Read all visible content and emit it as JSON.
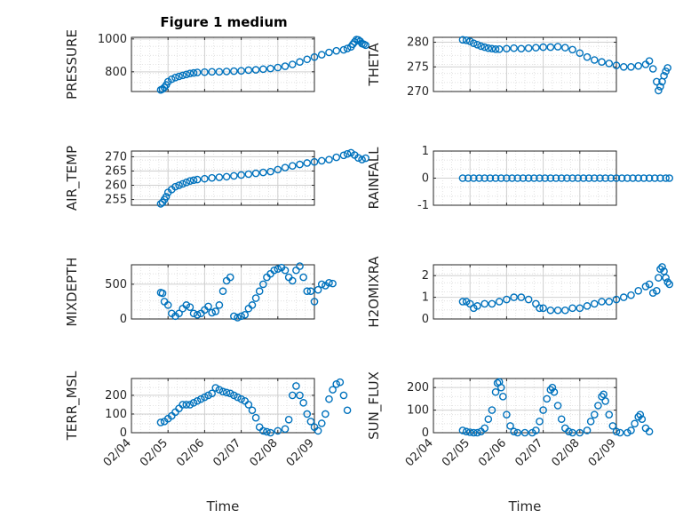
{
  "title": "Figure 1 medium",
  "marker_color": "#0072bd",
  "chart_data": [
    {
      "type": "scatter",
      "ylabel": "PRESSURE",
      "xlabel": "",
      "ylim": [
        680,
        1010
      ],
      "yticks": [
        800,
        1000
      ],
      "points": [
        [
          0.0,
          690
        ],
        [
          0.05,
          695
        ],
        [
          0.1,
          705
        ],
        [
          0.15,
          720
        ],
        [
          0.2,
          740
        ],
        [
          0.3,
          755
        ],
        [
          0.4,
          765
        ],
        [
          0.5,
          772
        ],
        [
          0.6,
          778
        ],
        [
          0.7,
          784
        ],
        [
          0.8,
          790
        ],
        [
          0.9,
          793
        ],
        [
          1.0,
          796
        ],
        [
          1.2,
          798
        ],
        [
          1.4,
          800
        ],
        [
          1.6,
          800
        ],
        [
          1.8,
          802
        ],
        [
          2.0,
          804
        ],
        [
          2.2,
          806
        ],
        [
          2.4,
          810
        ],
        [
          2.6,
          812
        ],
        [
          2.8,
          816
        ],
        [
          3.0,
          820
        ],
        [
          3.2,
          826
        ],
        [
          3.4,
          834
        ],
        [
          3.6,
          845
        ],
        [
          3.8,
          860
        ],
        [
          4.0,
          876
        ],
        [
          4.2,
          890
        ],
        [
          4.4,
          904
        ],
        [
          4.6,
          918
        ],
        [
          4.8,
          928
        ],
        [
          5.0,
          934
        ],
        [
          5.1,
          942
        ],
        [
          5.2,
          952
        ],
        [
          5.25,
          968
        ],
        [
          5.3,
          982
        ],
        [
          5.35,
          996
        ],
        [
          5.4,
          994
        ],
        [
          5.45,
          986
        ],
        [
          5.5,
          972
        ],
        [
          5.55,
          968
        ],
        [
          5.6,
          962
        ]
      ]
    },
    {
      "type": "scatter",
      "ylabel": "THETA",
      "xlabel": "",
      "ylim": [
        270,
        281
      ],
      "yticks": [
        270,
        275,
        280
      ],
      "points": [
        [
          0.0,
          280.5
        ],
        [
          0.1,
          280.4
        ],
        [
          0.2,
          280.2
        ],
        [
          0.3,
          279.8
        ],
        [
          0.4,
          279.5
        ],
        [
          0.5,
          279.2
        ],
        [
          0.6,
          279.0
        ],
        [
          0.7,
          278.8
        ],
        [
          0.8,
          278.7
        ],
        [
          0.9,
          278.6
        ],
        [
          1.0,
          278.6
        ],
        [
          1.2,
          278.7
        ],
        [
          1.4,
          278.8
        ],
        [
          1.6,
          278.7
        ],
        [
          1.8,
          278.8
        ],
        [
          2.0,
          278.9
        ],
        [
          2.2,
          279.0
        ],
        [
          2.4,
          279.0
        ],
        [
          2.6,
          279.1
        ],
        [
          2.8,
          278.9
        ],
        [
          3.0,
          278.5
        ],
        [
          3.2,
          277.8
        ],
        [
          3.4,
          277.0
        ],
        [
          3.6,
          276.4
        ],
        [
          3.8,
          276.0
        ],
        [
          4.0,
          275.7
        ],
        [
          4.2,
          275.3
        ],
        [
          4.4,
          275.0
        ],
        [
          4.6,
          275.0
        ],
        [
          4.8,
          275.2
        ],
        [
          5.0,
          275.5
        ],
        [
          5.1,
          276.2
        ],
        [
          5.2,
          274.6
        ],
        [
          5.3,
          272.0
        ],
        [
          5.35,
          270.2
        ],
        [
          5.4,
          271.0
        ],
        [
          5.45,
          272.0
        ],
        [
          5.5,
          273.2
        ],
        [
          5.55,
          274.1
        ],
        [
          5.6,
          274.8
        ]
      ]
    },
    {
      "type": "scatter",
      "ylabel": "AIR_TEMP",
      "xlabel": "",
      "ylim": [
        253,
        272
      ],
      "yticks": [
        255,
        260,
        265,
        270
      ],
      "points": [
        [
          0.0,
          253.5
        ],
        [
          0.05,
          254.0
        ],
        [
          0.1,
          255.0
        ],
        [
          0.15,
          256.0
        ],
        [
          0.2,
          257.5
        ],
        [
          0.3,
          258.5
        ],
        [
          0.4,
          259.5
        ],
        [
          0.5,
          260.0
        ],
        [
          0.6,
          260.5
        ],
        [
          0.7,
          261.0
        ],
        [
          0.8,
          261.5
        ],
        [
          0.9,
          261.8
        ],
        [
          1.0,
          262.0
        ],
        [
          1.2,
          262.3
        ],
        [
          1.4,
          262.6
        ],
        [
          1.6,
          262.8
        ],
        [
          1.8,
          263.0
        ],
        [
          2.0,
          263.3
        ],
        [
          2.2,
          263.6
        ],
        [
          2.4,
          263.9
        ],
        [
          2.6,
          264.2
        ],
        [
          2.8,
          264.5
        ],
        [
          3.0,
          264.8
        ],
        [
          3.2,
          265.5
        ],
        [
          3.4,
          266.2
        ],
        [
          3.6,
          266.8
        ],
        [
          3.8,
          267.3
        ],
        [
          4.0,
          267.8
        ],
        [
          4.2,
          268.2
        ],
        [
          4.4,
          268.6
        ],
        [
          4.6,
          269.0
        ],
        [
          4.8,
          269.8
        ],
        [
          5.0,
          270.5
        ],
        [
          5.1,
          271.0
        ],
        [
          5.2,
          271.4
        ],
        [
          5.3,
          270.6
        ],
        [
          5.4,
          269.6
        ],
        [
          5.5,
          269.0
        ],
        [
          5.6,
          269.5
        ]
      ]
    },
    {
      "type": "scatter",
      "ylabel": "RAINFALL",
      "xlabel": "",
      "ylim": [
        -1,
        1
      ],
      "yticks": [
        -1,
        0,
        1
      ],
      "points": [
        [
          0.0,
          0
        ],
        [
          0.15,
          0
        ],
        [
          0.3,
          0
        ],
        [
          0.45,
          0
        ],
        [
          0.6,
          0
        ],
        [
          0.75,
          0
        ],
        [
          0.9,
          0
        ],
        [
          1.05,
          0
        ],
        [
          1.2,
          0
        ],
        [
          1.35,
          0
        ],
        [
          1.5,
          0
        ],
        [
          1.65,
          0
        ],
        [
          1.8,
          0
        ],
        [
          1.95,
          0
        ],
        [
          2.1,
          0
        ],
        [
          2.25,
          0
        ],
        [
          2.4,
          0
        ],
        [
          2.55,
          0
        ],
        [
          2.7,
          0
        ],
        [
          2.85,
          0
        ],
        [
          3.0,
          0
        ],
        [
          3.15,
          0
        ],
        [
          3.3,
          0
        ],
        [
          3.45,
          0
        ],
        [
          3.6,
          0
        ],
        [
          3.75,
          0
        ],
        [
          3.9,
          0
        ],
        [
          4.05,
          0
        ],
        [
          4.2,
          0
        ],
        [
          4.35,
          0
        ],
        [
          4.5,
          0
        ],
        [
          4.65,
          0
        ],
        [
          4.8,
          0
        ],
        [
          4.95,
          0
        ],
        [
          5.1,
          0
        ],
        [
          5.25,
          0
        ],
        [
          5.4,
          0
        ],
        [
          5.55,
          0
        ],
        [
          5.65,
          0
        ]
      ]
    },
    {
      "type": "scatter",
      "ylabel": "MIXDEPTH",
      "xlabel": "",
      "ylim": [
        0,
        780
      ],
      "yticks": [
        0,
        500
      ],
      "points": [
        [
          0.0,
          380
        ],
        [
          0.05,
          370
        ],
        [
          0.1,
          250
        ],
        [
          0.2,
          200
        ],
        [
          0.3,
          80
        ],
        [
          0.4,
          40
        ],
        [
          0.5,
          80
        ],
        [
          0.6,
          150
        ],
        [
          0.7,
          200
        ],
        [
          0.8,
          170
        ],
        [
          0.9,
          80
        ],
        [
          1.0,
          60
        ],
        [
          1.1,
          80
        ],
        [
          1.2,
          130
        ],
        [
          1.3,
          180
        ],
        [
          1.4,
          90
        ],
        [
          1.5,
          110
        ],
        [
          1.6,
          200
        ],
        [
          1.7,
          400
        ],
        [
          1.8,
          550
        ],
        [
          1.9,
          600
        ],
        [
          2.0,
          40
        ],
        [
          2.1,
          20
        ],
        [
          2.2,
          40
        ],
        [
          2.3,
          60
        ],
        [
          2.4,
          150
        ],
        [
          2.5,
          200
        ],
        [
          2.6,
          300
        ],
        [
          2.7,
          400
        ],
        [
          2.8,
          500
        ],
        [
          2.9,
          600
        ],
        [
          3.0,
          650
        ],
        [
          3.1,
          700
        ],
        [
          3.2,
          720
        ],
        [
          3.3,
          740
        ],
        [
          3.4,
          700
        ],
        [
          3.5,
          600
        ],
        [
          3.6,
          550
        ],
        [
          3.7,
          700
        ],
        [
          3.8,
          760
        ],
        [
          3.9,
          600
        ],
        [
          4.0,
          400
        ],
        [
          4.1,
          400
        ],
        [
          4.2,
          250
        ],
        [
          4.3,
          420
        ],
        [
          4.4,
          500
        ],
        [
          4.5,
          480
        ],
        [
          4.6,
          520
        ],
        [
          4.7,
          510
        ]
      ]
    },
    {
      "type": "scatter",
      "ylabel": "H2OMIXRA",
      "xlabel": "",
      "ylim": [
        0,
        2.5
      ],
      "yticks": [
        0,
        1,
        2
      ],
      "points": [
        [
          0.0,
          0.8
        ],
        [
          0.1,
          0.8
        ],
        [
          0.2,
          0.7
        ],
        [
          0.3,
          0.5
        ],
        [
          0.4,
          0.6
        ],
        [
          0.6,
          0.7
        ],
        [
          0.8,
          0.7
        ],
        [
          1.0,
          0.8
        ],
        [
          1.2,
          0.9
        ],
        [
          1.4,
          1.0
        ],
        [
          1.6,
          1.0
        ],
        [
          1.8,
          0.9
        ],
        [
          2.0,
          0.7
        ],
        [
          2.1,
          0.5
        ],
        [
          2.2,
          0.5
        ],
        [
          2.4,
          0.4
        ],
        [
          2.6,
          0.4
        ],
        [
          2.8,
          0.4
        ],
        [
          3.0,
          0.5
        ],
        [
          3.2,
          0.5
        ],
        [
          3.4,
          0.6
        ],
        [
          3.6,
          0.7
        ],
        [
          3.8,
          0.8
        ],
        [
          4.0,
          0.8
        ],
        [
          4.2,
          0.9
        ],
        [
          4.4,
          1.0
        ],
        [
          4.6,
          1.1
        ],
        [
          4.8,
          1.3
        ],
        [
          5.0,
          1.5
        ],
        [
          5.1,
          1.6
        ],
        [
          5.2,
          1.2
        ],
        [
          5.3,
          1.3
        ],
        [
          5.35,
          1.9
        ],
        [
          5.4,
          2.3
        ],
        [
          5.45,
          2.4
        ],
        [
          5.5,
          2.2
        ],
        [
          5.55,
          1.9
        ],
        [
          5.6,
          1.7
        ],
        [
          5.65,
          1.6
        ]
      ]
    },
    {
      "type": "scatter",
      "ylabel": "TERR_MSL",
      "xlabel": "Time",
      "ylim": [
        0,
        290
      ],
      "yticks": [
        0,
        100,
        200
      ],
      "xticks": [
        "02/04",
        "02/05",
        "02/06",
        "02/07",
        "02/08",
        "02/09"
      ],
      "points": [
        [
          0.0,
          55
        ],
        [
          0.1,
          60
        ],
        [
          0.2,
          75
        ],
        [
          0.3,
          90
        ],
        [
          0.4,
          110
        ],
        [
          0.5,
          130
        ],
        [
          0.6,
          150
        ],
        [
          0.7,
          150
        ],
        [
          0.8,
          150
        ],
        [
          0.9,
          160
        ],
        [
          1.0,
          170
        ],
        [
          1.1,
          180
        ],
        [
          1.2,
          190
        ],
        [
          1.3,
          200
        ],
        [
          1.4,
          210
        ],
        [
          1.5,
          240
        ],
        [
          1.6,
          230
        ],
        [
          1.7,
          220
        ],
        [
          1.8,
          215
        ],
        [
          1.9,
          210
        ],
        [
          2.0,
          200
        ],
        [
          2.1,
          190
        ],
        [
          2.2,
          180
        ],
        [
          2.3,
          170
        ],
        [
          2.4,
          150
        ],
        [
          2.5,
          120
        ],
        [
          2.6,
          80
        ],
        [
          2.7,
          30
        ],
        [
          2.8,
          10
        ],
        [
          2.9,
          5
        ],
        [
          3.0,
          0
        ],
        [
          3.2,
          10
        ],
        [
          3.4,
          20
        ],
        [
          3.5,
          70
        ],
        [
          3.6,
          200
        ],
        [
          3.7,
          250
        ],
        [
          3.8,
          200
        ],
        [
          3.9,
          160
        ],
        [
          4.0,
          100
        ],
        [
          4.1,
          60
        ],
        [
          4.2,
          30
        ],
        [
          4.3,
          10
        ],
        [
          4.4,
          50
        ],
        [
          4.5,
          100
        ],
        [
          4.6,
          180
        ],
        [
          4.7,
          230
        ],
        [
          4.8,
          260
        ],
        [
          4.9,
          270
        ],
        [
          5.0,
          200
        ],
        [
          5.1,
          120
        ]
      ]
    },
    {
      "type": "scatter",
      "ylabel": "SUN_FLUX",
      "xlabel": "Time",
      "ylim": [
        0,
        240
      ],
      "yticks": [
        0,
        100,
        200
      ],
      "xticks": [
        "02/04",
        "02/05",
        "02/06",
        "02/07",
        "02/08",
        "02/09"
      ],
      "points": [
        [
          0.0,
          10
        ],
        [
          0.1,
          5
        ],
        [
          0.2,
          2
        ],
        [
          0.3,
          0
        ],
        [
          0.4,
          0
        ],
        [
          0.5,
          5
        ],
        [
          0.6,
          20
        ],
        [
          0.7,
          60
        ],
        [
          0.8,
          100
        ],
        [
          0.9,
          180
        ],
        [
          0.95,
          220
        ],
        [
          1.0,
          225
        ],
        [
          1.05,
          200
        ],
        [
          1.1,
          160
        ],
        [
          1.2,
          80
        ],
        [
          1.3,
          30
        ],
        [
          1.4,
          5
        ],
        [
          1.5,
          0
        ],
        [
          1.7,
          0
        ],
        [
          1.9,
          0
        ],
        [
          2.0,
          10
        ],
        [
          2.1,
          50
        ],
        [
          2.2,
          100
        ],
        [
          2.3,
          150
        ],
        [
          2.4,
          190
        ],
        [
          2.45,
          200
        ],
        [
          2.5,
          180
        ],
        [
          2.6,
          120
        ],
        [
          2.7,
          60
        ],
        [
          2.8,
          20
        ],
        [
          2.9,
          5
        ],
        [
          3.0,
          0
        ],
        [
          3.2,
          0
        ],
        [
          3.4,
          10
        ],
        [
          3.5,
          50
        ],
        [
          3.6,
          80
        ],
        [
          3.7,
          120
        ],
        [
          3.8,
          160
        ],
        [
          3.85,
          170
        ],
        [
          3.9,
          140
        ],
        [
          4.0,
          80
        ],
        [
          4.1,
          30
        ],
        [
          4.2,
          5
        ],
        [
          4.3,
          0
        ],
        [
          4.5,
          0
        ],
        [
          4.6,
          10
        ],
        [
          4.7,
          40
        ],
        [
          4.8,
          70
        ],
        [
          4.85,
          80
        ],
        [
          4.9,
          60
        ],
        [
          5.0,
          20
        ],
        [
          5.1,
          5
        ]
      ]
    }
  ]
}
